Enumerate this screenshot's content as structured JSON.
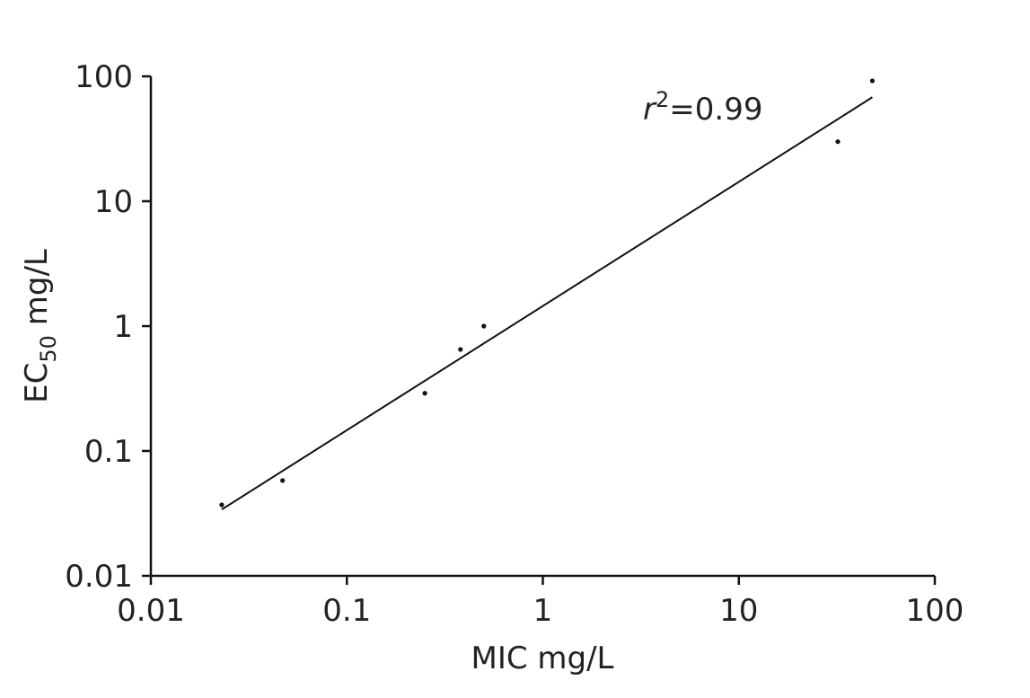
{
  "chart_data": {
    "type": "scatter",
    "xlabel": "MIC mg/L",
    "ylabel": {
      "main": "EC",
      "sub": "50",
      "rest": " mg/L"
    },
    "xscale": "log",
    "yscale": "log",
    "xlim": [
      0.01,
      100
    ],
    "ylim": [
      0.01,
      100
    ],
    "xticks": [
      {
        "value": 0.01,
        "label": "0.01"
      },
      {
        "value": 0.1,
        "label": "0.1"
      },
      {
        "value": 1,
        "label": "1"
      },
      {
        "value": 10,
        "label": "10"
      },
      {
        "value": 100,
        "label": "100"
      }
    ],
    "yticks": [
      {
        "value": 0.01,
        "label": "0.01"
      },
      {
        "value": 0.1,
        "label": "0.1"
      },
      {
        "value": 1,
        "label": "1"
      },
      {
        "value": 10,
        "label": "10"
      },
      {
        "value": 100,
        "label": "100"
      }
    ],
    "grid": false,
    "points": [
      {
        "x": 0.023,
        "y": 0.037
      },
      {
        "x": 0.047,
        "y": 0.058
      },
      {
        "x": 0.25,
        "y": 0.29
      },
      {
        "x": 0.38,
        "y": 0.65
      },
      {
        "x": 0.5,
        "y": 1.0
      },
      {
        "x": 32,
        "y": 30
      },
      {
        "x": 48,
        "y": 92
      }
    ],
    "fit_line": {
      "x": [
        0.023,
        48
      ],
      "y": [
        0.034,
        68
      ]
    },
    "annotation": {
      "var": "r",
      "sup": "2",
      "text": "=0.99"
    },
    "colors": {
      "ink": "#111111"
    }
  }
}
